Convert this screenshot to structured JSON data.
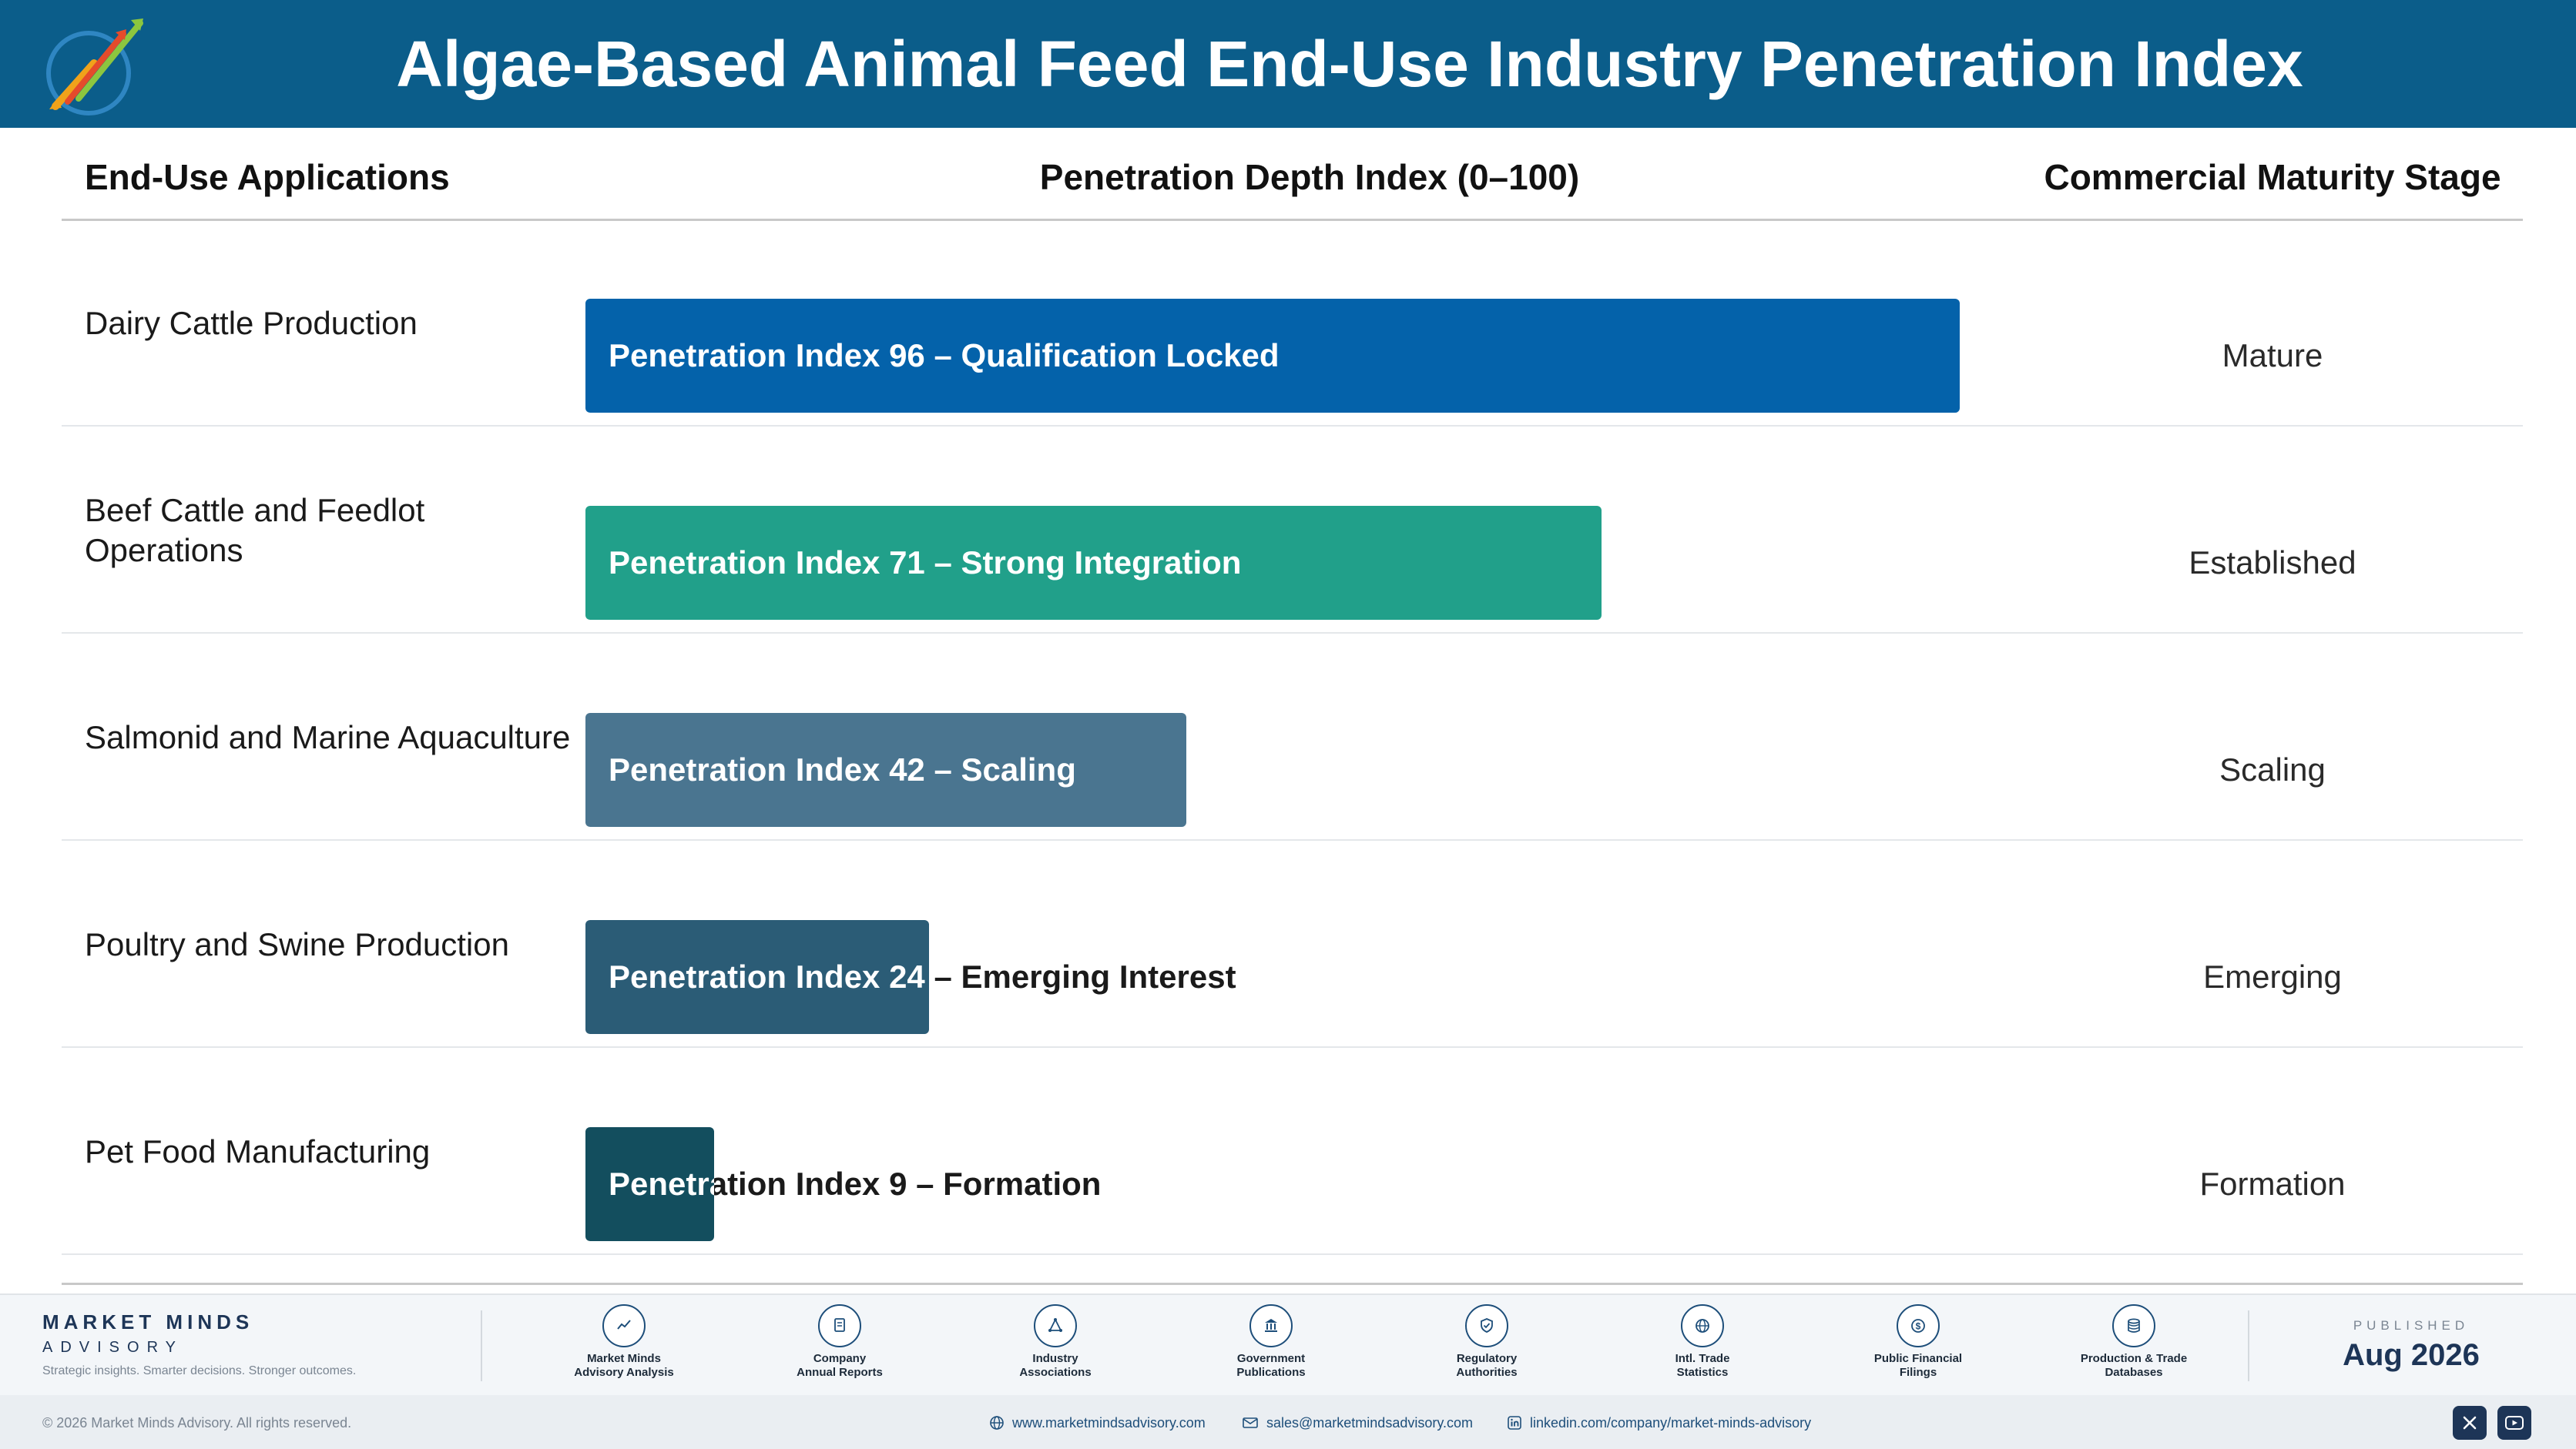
{
  "header": {
    "title": "Algae-Based Animal Feed End-Use Industry Penetration Index"
  },
  "columns": {
    "applications": "End-Use Applications",
    "index": "Penetration Depth Index (0–100)",
    "stage": "Commercial Maturity Stage"
  },
  "chart_data": {
    "type": "bar",
    "orientation": "horizontal",
    "title": "Algae-Based Animal Feed End-Use Industry Penetration Index",
    "xlabel": "Penetration Depth Index (0–100)",
    "xlim": [
      0,
      100
    ],
    "categories": [
      "Dairy Cattle Production",
      "Beef Cattle and Feedlot Operations",
      "Salmonid and Marine Aquaculture",
      "Poultry and Swine Production",
      "Pet Food Manufacturing"
    ],
    "values": [
      96,
      71,
      42,
      24,
      9
    ],
    "bar_labels": [
      "Penetration Index 96 – Qualification Locked",
      "Penetration Index 71 – Strong Integration",
      "Penetration Index 42 – Scaling",
      "Penetration Index 24 – Emerging Interest",
      "Penetration Index 9 – Formation"
    ],
    "stages": [
      "Mature",
      "Established",
      "Scaling",
      "Emerging",
      "Formation"
    ],
    "colors": [
      "#0462aa",
      "#21a08a",
      "#4a7590",
      "#2b5c76",
      "#134e5e"
    ],
    "grid": false,
    "legend": "none"
  },
  "footer": {
    "brand_name": "MARKET MINDS",
    "brand_sub": "ADVISORY",
    "brand_tagline": "Strategic insights. Smarter decisions. Stronger outcomes.",
    "sources": [
      {
        "label": "Market Minds\nAdvisory Analysis",
        "icon": "trend-chart-icon"
      },
      {
        "label": "Company\nAnnual Reports",
        "icon": "document-icon"
      },
      {
        "label": "Industry\nAssociations",
        "icon": "network-icon"
      },
      {
        "label": "Government\nPublications",
        "icon": "government-building-icon"
      },
      {
        "label": "Regulatory\nAuthorities",
        "icon": "shield-check-icon"
      },
      {
        "label": "Intl. Trade\nStatistics",
        "icon": "globe-icon"
      },
      {
        "label": "Public Financial\nFilings",
        "icon": "dollar-coin-icon"
      },
      {
        "label": "Production & Trade\nDatabases",
        "icon": "database-icon"
      }
    ],
    "published_label": "PUBLISHED",
    "published_date": "Aug 2026",
    "copyright": "© 2026 Market Minds Advisory. All rights reserved.",
    "website": "www.marketmindsadvisory.com",
    "email": "sales@marketmindsadvisory.com",
    "linkedin": "linkedin.com/company/market-minds-advisory"
  }
}
